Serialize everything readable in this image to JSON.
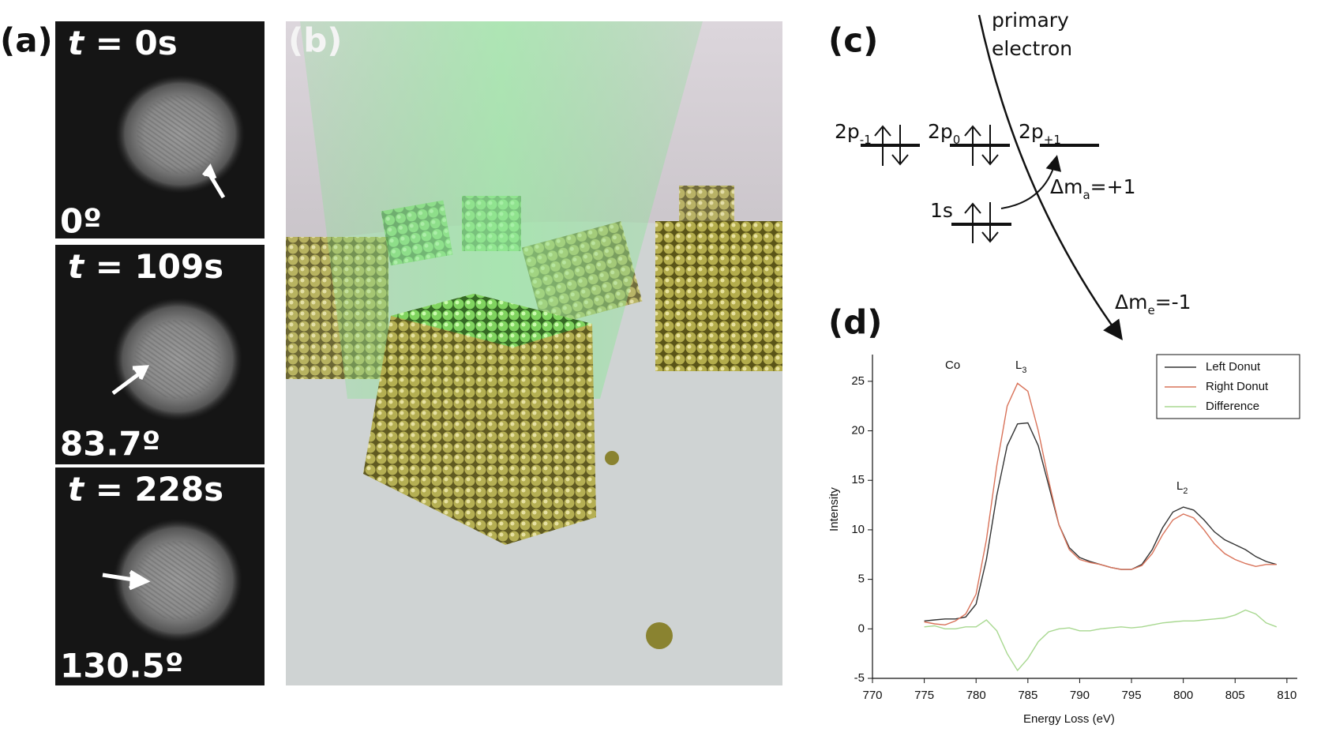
{
  "panels": {
    "a": {
      "label": "(a)",
      "frames": [
        {
          "time": {
            "var": "t",
            "rest": " = 0s"
          },
          "angle": "0º"
        },
        {
          "time": {
            "var": "t",
            "rest": " = 109s"
          },
          "angle": "83.7º"
        },
        {
          "time": {
            "var": "t",
            "rest": " = 228s"
          },
          "angle": "130.5º"
        }
      ]
    },
    "b": {
      "label": "(b)"
    },
    "c": {
      "label": "(c)",
      "primary": [
        "primary",
        "electron"
      ],
      "levels": [
        {
          "name": "2p",
          "sub": "-1"
        },
        {
          "name": "2p",
          "sub": "0"
        },
        {
          "name": "2p",
          "sub": "+1"
        },
        {
          "name": "1s",
          "sub": ""
        }
      ],
      "atom_transition": {
        "pre": "Δm",
        "sub": "a",
        "post": "=+1"
      },
      "electron_transition": {
        "pre": "Δm",
        "sub": "e",
        "post": "=-1"
      }
    },
    "d": {
      "label": "(d)"
    }
  },
  "chart_data": {
    "type": "line",
    "x_label": "Energy Loss (eV)",
    "y_label": "Intensity",
    "annotations": [
      {
        "text": "Co",
        "sub": ""
      },
      {
        "text": "L",
        "sub": "3"
      },
      {
        "text": "L",
        "sub": "2"
      }
    ],
    "x": [
      775,
      776,
      777,
      778,
      779,
      780,
      781,
      782,
      783,
      784,
      785,
      786,
      787,
      788,
      789,
      790,
      791,
      792,
      793,
      794,
      795,
      796,
      797,
      798,
      799,
      800,
      801,
      802,
      803,
      804,
      805,
      806,
      807,
      808,
      809
    ],
    "series": [
      {
        "name": "Left Donut",
        "color": "#333333",
        "values": [
          0.8,
          0.9,
          1.0,
          1.0,
          1.2,
          2.5,
          7,
          13.5,
          18.5,
          20.7,
          20.8,
          18.5,
          14.5,
          10.5,
          8.2,
          7.2,
          6.8,
          6.5,
          6.2,
          6.0,
          6.0,
          6.5,
          8.0,
          10.2,
          11.8,
          12.3,
          12.0,
          11.0,
          9.8,
          9.0,
          8.5,
          8.0,
          7.3,
          6.8,
          6.5
        ]
      },
      {
        "name": "Right Donut",
        "color": "#d9735a",
        "values": [
          0.7,
          0.5,
          0.4,
          0.8,
          1.5,
          3.5,
          9,
          16.5,
          22.5,
          24.8,
          24.0,
          20,
          15,
          10.5,
          8.0,
          7.0,
          6.7,
          6.5,
          6.2,
          6.0,
          6.0,
          6.4,
          7.6,
          9.5,
          11.0,
          11.6,
          11.2,
          10.0,
          8.6,
          7.6,
          7.0,
          6.6,
          6.3,
          6.5,
          6.5
        ]
      },
      {
        "name": "Difference",
        "color": "#a8d890",
        "values": [
          0.2,
          0.3,
          0.0,
          0.0,
          0.2,
          0.2,
          0.9,
          -0.2,
          -2.5,
          -4.2,
          -3.0,
          -1.3,
          -0.3,
          0,
          0.1,
          -0.2,
          -0.2,
          0.0,
          0.1,
          0.2,
          0.1,
          0.2,
          0.4,
          0.6,
          0.7,
          0.8,
          0.8,
          0.9,
          1.0,
          1.1,
          1.4,
          1.9,
          1.5,
          0.6,
          0.2
        ]
      }
    ],
    "xlim": [
      770,
      811
    ],
    "ylim": [
      -5,
      27.7
    ],
    "xticks": [
      770,
      775,
      780,
      785,
      790,
      795,
      800,
      805,
      810
    ],
    "yticks": [
      -5,
      0,
      5,
      10,
      15,
      20,
      25
    ],
    "legend": "upper right"
  }
}
